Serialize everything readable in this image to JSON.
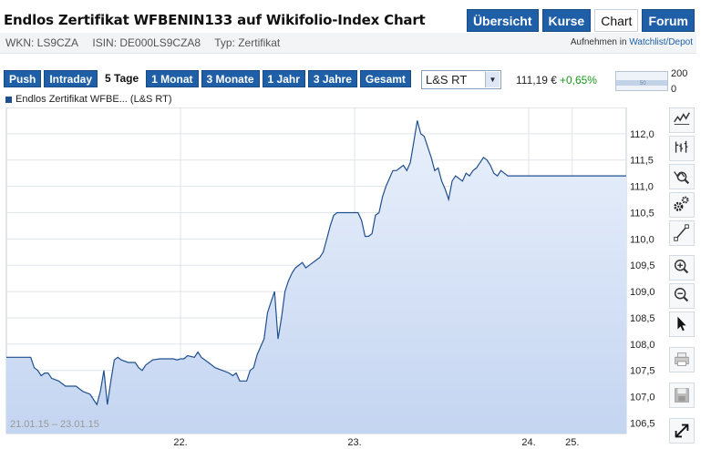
{
  "header": {
    "title": "Endlos Zertifikat WFBENIN133 auf Wikifolio-Index Chart",
    "tabs": [
      {
        "label": "Übersicht",
        "active": false
      },
      {
        "label": "Kurse",
        "active": false
      },
      {
        "label": "Chart",
        "active": true
      },
      {
        "label": "Forum",
        "active": false
      }
    ]
  },
  "meta": {
    "wkn": "WKN: LS9CZA",
    "isin": "ISIN: DE000LS9CZA8",
    "typ": "Typ: Zertifikat",
    "watch_prefix": "Aufnehmen in ",
    "watch_link": "Watchlist/Depot"
  },
  "toolbar": {
    "ranges": [
      {
        "label": "Push",
        "active": false
      },
      {
        "label": "Intraday",
        "active": false
      },
      {
        "label": "5 Tage",
        "active": true
      },
      {
        "label": "1 Monat",
        "active": false
      },
      {
        "label": "3 Monate",
        "active": false
      },
      {
        "label": "1 Jahr",
        "active": false
      },
      {
        "label": "3 Jahre",
        "active": false
      },
      {
        "label": "Gesamt",
        "active": false
      }
    ],
    "exchange": "L&S RT",
    "price": "111,19 €",
    "change": "+0,65%",
    "mini_top": "200",
    "mini_bottom": "0",
    "mini_label": "50"
  },
  "legend": {
    "label": "Endlos Zertifikat WFBE... (L&S RT)",
    "color": "#1f4f8f"
  },
  "chart_data": {
    "type": "area",
    "date_range_label": "21.01.15 – 23.01.15",
    "x_ticks": [
      "22.",
      "23.",
      "24.",
      "25."
    ],
    "y_ticks": [
      "106,5",
      "107,0",
      "107,5",
      "108,0",
      "108,5",
      "109,0",
      "109,5",
      "110,0",
      "110,5",
      "111,0",
      "111,5",
      "112,0"
    ],
    "ylim": [
      106.3,
      112.5
    ],
    "grid": true,
    "line_color": "#1f4f8f",
    "fill_top": "#e9f0fb",
    "fill_bottom": "#c4d5f1",
    "series": [
      {
        "values": [
          [
            0.0,
            107.75
          ],
          [
            0.05,
            107.75
          ],
          [
            0.07,
            107.75
          ],
          [
            0.08,
            107.55
          ],
          [
            0.09,
            107.5
          ],
          [
            0.1,
            107.4
          ],
          [
            0.11,
            107.45
          ],
          [
            0.12,
            107.45
          ],
          [
            0.13,
            107.35
          ],
          [
            0.15,
            107.3
          ],
          [
            0.17,
            107.2
          ],
          [
            0.2,
            107.2
          ],
          [
            0.22,
            107.1
          ],
          [
            0.24,
            107.05
          ],
          [
            0.25,
            106.95
          ],
          [
            0.26,
            106.85
          ],
          [
            0.27,
            107.1
          ],
          [
            0.28,
            107.5
          ],
          [
            0.29,
            106.85
          ],
          [
            0.3,
            107.3
          ],
          [
            0.31,
            107.7
          ],
          [
            0.32,
            107.75
          ],
          [
            0.33,
            107.7
          ],
          [
            0.35,
            107.65
          ],
          [
            0.37,
            107.65
          ],
          [
            0.38,
            107.55
          ],
          [
            0.39,
            107.5
          ],
          [
            0.4,
            107.6
          ],
          [
            0.42,
            107.7
          ],
          [
            0.44,
            107.72
          ],
          [
            0.46,
            107.72
          ],
          [
            0.48,
            107.72
          ],
          [
            0.49,
            107.7
          ],
          [
            0.5,
            107.72
          ],
          [
            0.51,
            107.72
          ],
          [
            0.52,
            107.78
          ],
          [
            0.54,
            107.75
          ],
          [
            0.55,
            107.85
          ],
          [
            0.56,
            107.75
          ],
          [
            0.58,
            107.65
          ],
          [
            0.6,
            107.55
          ],
          [
            0.62,
            107.5
          ],
          [
            0.64,
            107.45
          ],
          [
            0.65,
            107.4
          ],
          [
            0.66,
            107.45
          ],
          [
            0.67,
            107.3
          ],
          [
            0.69,
            107.3
          ],
          [
            0.7,
            107.5
          ],
          [
            0.71,
            107.55
          ],
          [
            0.72,
            107.8
          ],
          [
            0.73,
            107.95
          ],
          [
            0.74,
            108.1
          ],
          [
            0.75,
            108.6
          ],
          [
            0.76,
            108.8
          ],
          [
            0.77,
            109.0
          ],
          [
            0.78,
            108.1
          ],
          [
            0.79,
            108.5
          ],
          [
            0.8,
            109.0
          ],
          [
            0.81,
            109.2
          ],
          [
            0.82,
            109.35
          ],
          [
            0.83,
            109.45
          ],
          [
            0.85,
            109.55
          ],
          [
            0.86,
            109.45
          ],
          [
            0.87,
            109.5
          ],
          [
            0.88,
            109.55
          ],
          [
            0.89,
            109.6
          ],
          [
            0.9,
            109.65
          ],
          [
            0.91,
            109.75
          ],
          [
            0.92,
            110.0
          ],
          [
            0.93,
            110.25
          ],
          [
            0.94,
            110.45
          ],
          [
            0.95,
            110.5
          ],
          [
            0.97,
            110.5
          ],
          [
            0.99,
            110.5
          ],
          [
            1.0,
            110.5
          ],
          [
            1.01,
            110.5
          ],
          [
            1.02,
            110.35
          ],
          [
            1.03,
            110.05
          ],
          [
            1.04,
            110.05
          ],
          [
            1.05,
            110.1
          ],
          [
            1.06,
            110.45
          ],
          [
            1.07,
            110.5
          ],
          [
            1.08,
            110.8
          ],
          [
            1.09,
            111.0
          ],
          [
            1.1,
            111.15
          ],
          [
            1.11,
            111.3
          ],
          [
            1.12,
            111.3
          ],
          [
            1.13,
            111.35
          ],
          [
            1.14,
            111.4
          ],
          [
            1.15,
            111.3
          ],
          [
            1.16,
            111.45
          ],
          [
            1.17,
            111.85
          ],
          [
            1.18,
            112.25
          ],
          [
            1.19,
            112.0
          ],
          [
            1.2,
            111.95
          ],
          [
            1.21,
            111.75
          ],
          [
            1.22,
            111.55
          ],
          [
            1.23,
            111.3
          ],
          [
            1.24,
            111.35
          ],
          [
            1.25,
            111.1
          ],
          [
            1.26,
            110.95
          ],
          [
            1.27,
            110.75
          ],
          [
            1.28,
            111.1
          ],
          [
            1.29,
            111.2
          ],
          [
            1.3,
            111.15
          ],
          [
            1.31,
            111.1
          ],
          [
            1.32,
            111.25
          ],
          [
            1.33,
            111.2
          ],
          [
            1.34,
            111.3
          ],
          [
            1.35,
            111.35
          ],
          [
            1.36,
            111.45
          ],
          [
            1.37,
            111.55
          ],
          [
            1.38,
            111.5
          ],
          [
            1.39,
            111.4
          ],
          [
            1.4,
            111.25
          ],
          [
            1.41,
            111.2
          ],
          [
            1.42,
            111.3
          ],
          [
            1.43,
            111.25
          ],
          [
            1.44,
            111.2
          ],
          [
            1.46,
            111.2
          ],
          [
            1.5,
            111.2
          ],
          [
            1.55,
            111.2
          ],
          [
            1.6,
            111.2
          ],
          [
            1.66,
            111.2
          ],
          [
            1.72,
            111.2
          ],
          [
            1.78,
            111.2
          ]
        ]
      }
    ]
  },
  "tools": [
    {
      "name": "line-chart-icon",
      "disabled": false
    },
    {
      "name": "ohlc-chart-icon",
      "disabled": false
    },
    {
      "name": "indicator-search-icon",
      "disabled": false
    },
    {
      "name": "settings-gears-icon",
      "disabled": false
    },
    {
      "name": "draw-line-icon",
      "disabled": false
    },
    {
      "name": "zoom-in-icon",
      "disabled": false
    },
    {
      "name": "zoom-out-icon",
      "disabled": false
    },
    {
      "name": "pointer-cursor-icon",
      "disabled": false
    },
    {
      "name": "print-icon",
      "disabled": true
    },
    {
      "name": "save-icon",
      "disabled": true
    },
    {
      "name": "fullscreen-expand-icon",
      "disabled": false
    }
  ]
}
